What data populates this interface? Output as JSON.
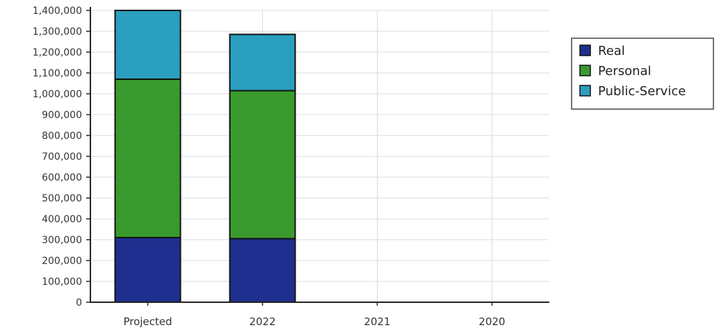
{
  "chart_data": {
    "type": "bar",
    "stacked": true,
    "categories": [
      "Projected",
      "2022",
      "2021",
      "2020"
    ],
    "series": [
      {
        "name": "Real",
        "color": "#1f2f8f",
        "values": [
          310000,
          305000,
          0,
          0
        ]
      },
      {
        "name": "Personal",
        "color": "#3a9a2e",
        "values": [
          760000,
          710000,
          0,
          0
        ]
      },
      {
        "name": "Public-Service",
        "color": "#2a9fbf",
        "values": [
          330000,
          270000,
          0,
          0
        ]
      }
    ],
    "ylim": [
      0,
      1400000
    ],
    "yticks": [
      "0",
      "100,000",
      "200,000",
      "300,000",
      "400,000",
      "500,000",
      "600,000",
      "700,000",
      "800,000",
      "900,000",
      "1,000,000",
      "1,100,000",
      "1,200,000",
      "1,300,000",
      "1,400,000"
    ],
    "grid": true,
    "legend_position": "right",
    "title": "",
    "xlabel": "",
    "ylabel": ""
  }
}
